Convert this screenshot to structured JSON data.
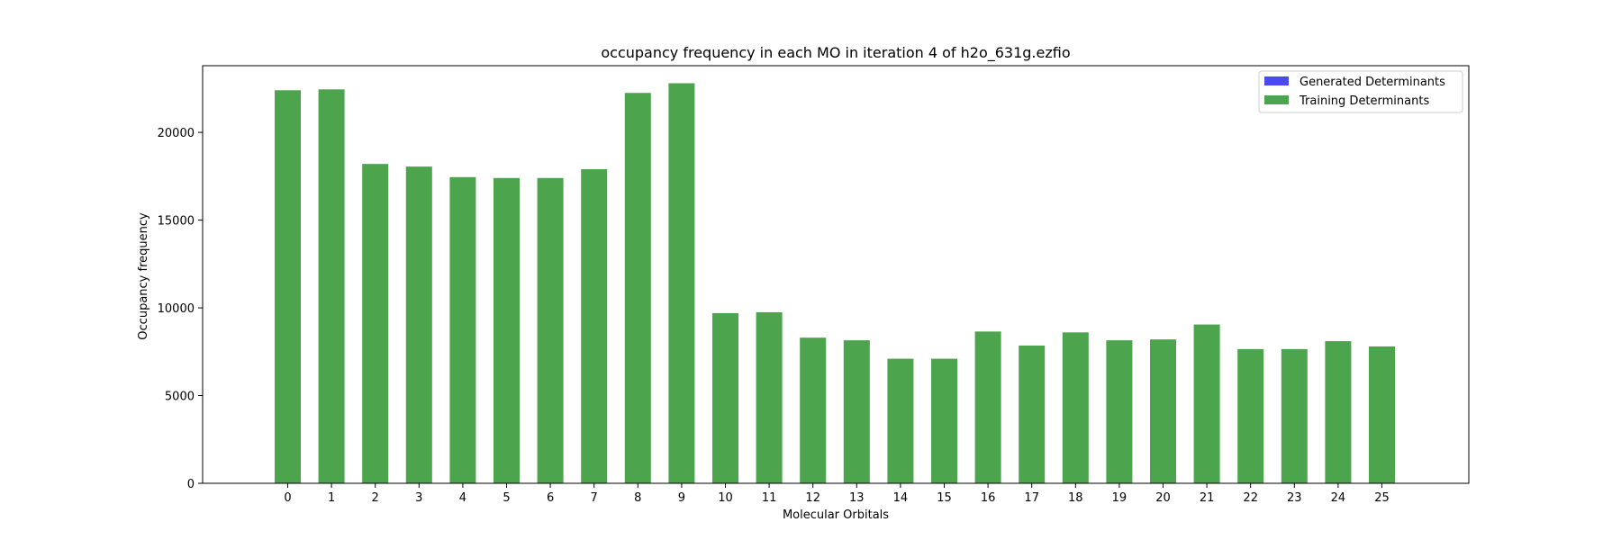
{
  "chart_data": {
    "type": "bar",
    "title": "occupancy frequency in each MO in iteration 4 of h2o_631g.ezfio",
    "xlabel": "Molecular Orbitals",
    "ylabel": "Occupancy frequency",
    "categories": [
      "0",
      "1",
      "2",
      "3",
      "4",
      "5",
      "6",
      "7",
      "8",
      "9",
      "10",
      "11",
      "12",
      "13",
      "14",
      "15",
      "16",
      "17",
      "18",
      "19",
      "20",
      "21",
      "22",
      "23",
      "24",
      "25"
    ],
    "yticks": [
      0,
      5000,
      10000,
      15000,
      20000
    ],
    "ylim": [
      0,
      23800
    ],
    "grid": false,
    "legend_position": "top-right",
    "series": [
      {
        "name": "Generated Determinants",
        "color": "#4a4aef",
        "values": [
          0,
          0,
          0,
          0,
          0,
          0,
          0,
          0,
          0,
          0,
          0,
          0,
          0,
          0,
          0,
          0,
          0,
          0,
          0,
          0,
          0,
          0,
          0,
          0,
          0,
          0
        ]
      },
      {
        "name": "Training Determinants",
        "color": "#4ca44c",
        "values": [
          22400,
          22450,
          18200,
          18050,
          17450,
          17400,
          17400,
          17900,
          22250,
          22800,
          9700,
          9750,
          8300,
          8150,
          7100,
          7100,
          8650,
          7850,
          8600,
          8150,
          8200,
          9050,
          7650,
          7650,
          8100,
          7800
        ]
      }
    ]
  }
}
